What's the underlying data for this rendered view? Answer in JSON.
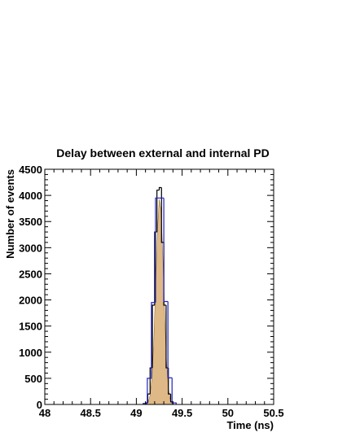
{
  "chart_data": {
    "type": "histogram",
    "title": "Delay between external and internal PD",
    "x_label": "Time (ns)",
    "y_label": "Number of events",
    "xlim": [
      48,
      50.5
    ],
    "xticks": [
      48,
      48.5,
      49,
      49.5,
      50,
      50.5
    ],
    "ylim": [
      0,
      4500
    ],
    "yticks": [
      0,
      500,
      1000,
      1500,
      2000,
      2500,
      3000,
      3500,
      4000,
      4500
    ],
    "fit": {
      "color": "#deb887",
      "x": [
        49.11,
        49.13,
        49.15,
        49.17,
        49.19,
        49.21,
        49.23,
        49.25,
        49.27,
        49.29,
        49.31,
        49.33,
        49.35,
        49.37,
        49.39
      ],
      "values": [
        10,
        47,
        174,
        508,
        1190,
        2225,
        3310,
        3923,
        3706,
        2792,
        1676,
        802,
        305,
        93,
        23
      ]
    },
    "series": [
      {
        "color": "#000000",
        "bins": [
          49.1,
          49.125,
          49.15,
          49.175,
          49.2,
          49.225,
          49.25,
          49.275,
          49.3,
          49.325,
          49.35,
          49.375,
          49.4
        ],
        "values": [
          30,
          200,
          700,
          1900,
          3300,
          4100,
          4150,
          3100,
          1900,
          700,
          200,
          50
        ]
      },
      {
        "color": "#2222bb",
        "bins": [
          49.075,
          49.12,
          49.165,
          49.21,
          49.255,
          49.3,
          49.345,
          49.39,
          49.435
        ],
        "values": [
          20,
          500,
          1950,
          3950,
          3950,
          1970,
          510,
          30
        ]
      }
    ]
  }
}
